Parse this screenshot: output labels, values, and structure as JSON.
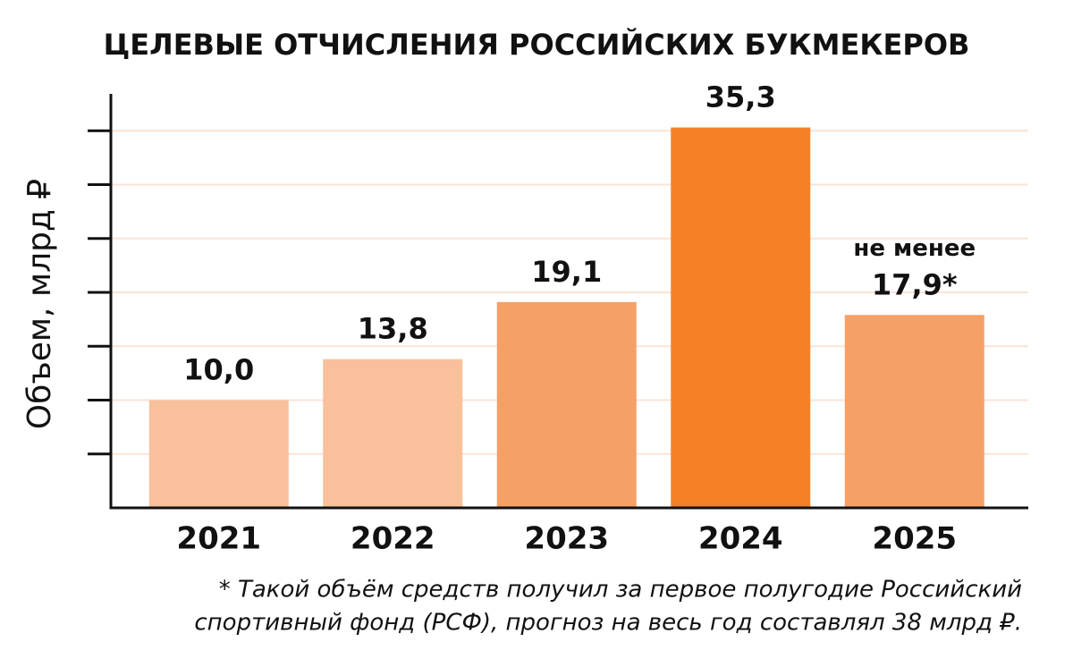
{
  "chart_data": {
    "type": "bar",
    "title": "ЦЕЛЕВЫЕ ОТЧИСЛЕНИЯ РОССИЙСКИХ БУКМЕКЕРОВ",
    "y_label": "Объем, млрд ₽",
    "categories": [
      "2021",
      "2022",
      "2023",
      "2024",
      "2025"
    ],
    "values": [
      10.0,
      13.8,
      19.1,
      35.3,
      17.9
    ],
    "value_labels": [
      "10,0",
      "13,8",
      "19,1",
      "35,3",
      "17,9*"
    ],
    "colors": [
      "#f9c09c",
      "#f9c09c",
      "#f5a066",
      "#f58025",
      "#f5a066"
    ],
    "annotation": "не менее",
    "ylim": [
      0,
      39
    ],
    "yticks": [
      5,
      10,
      15,
      20,
      25,
      30,
      35
    ],
    "grid": true,
    "footnote": [
      "* Такой объём средств получил за первое полугодие Российский",
      "спортивный фонд (РСФ), прогноз на весь год составлял 38 млрд ₽."
    ]
  }
}
